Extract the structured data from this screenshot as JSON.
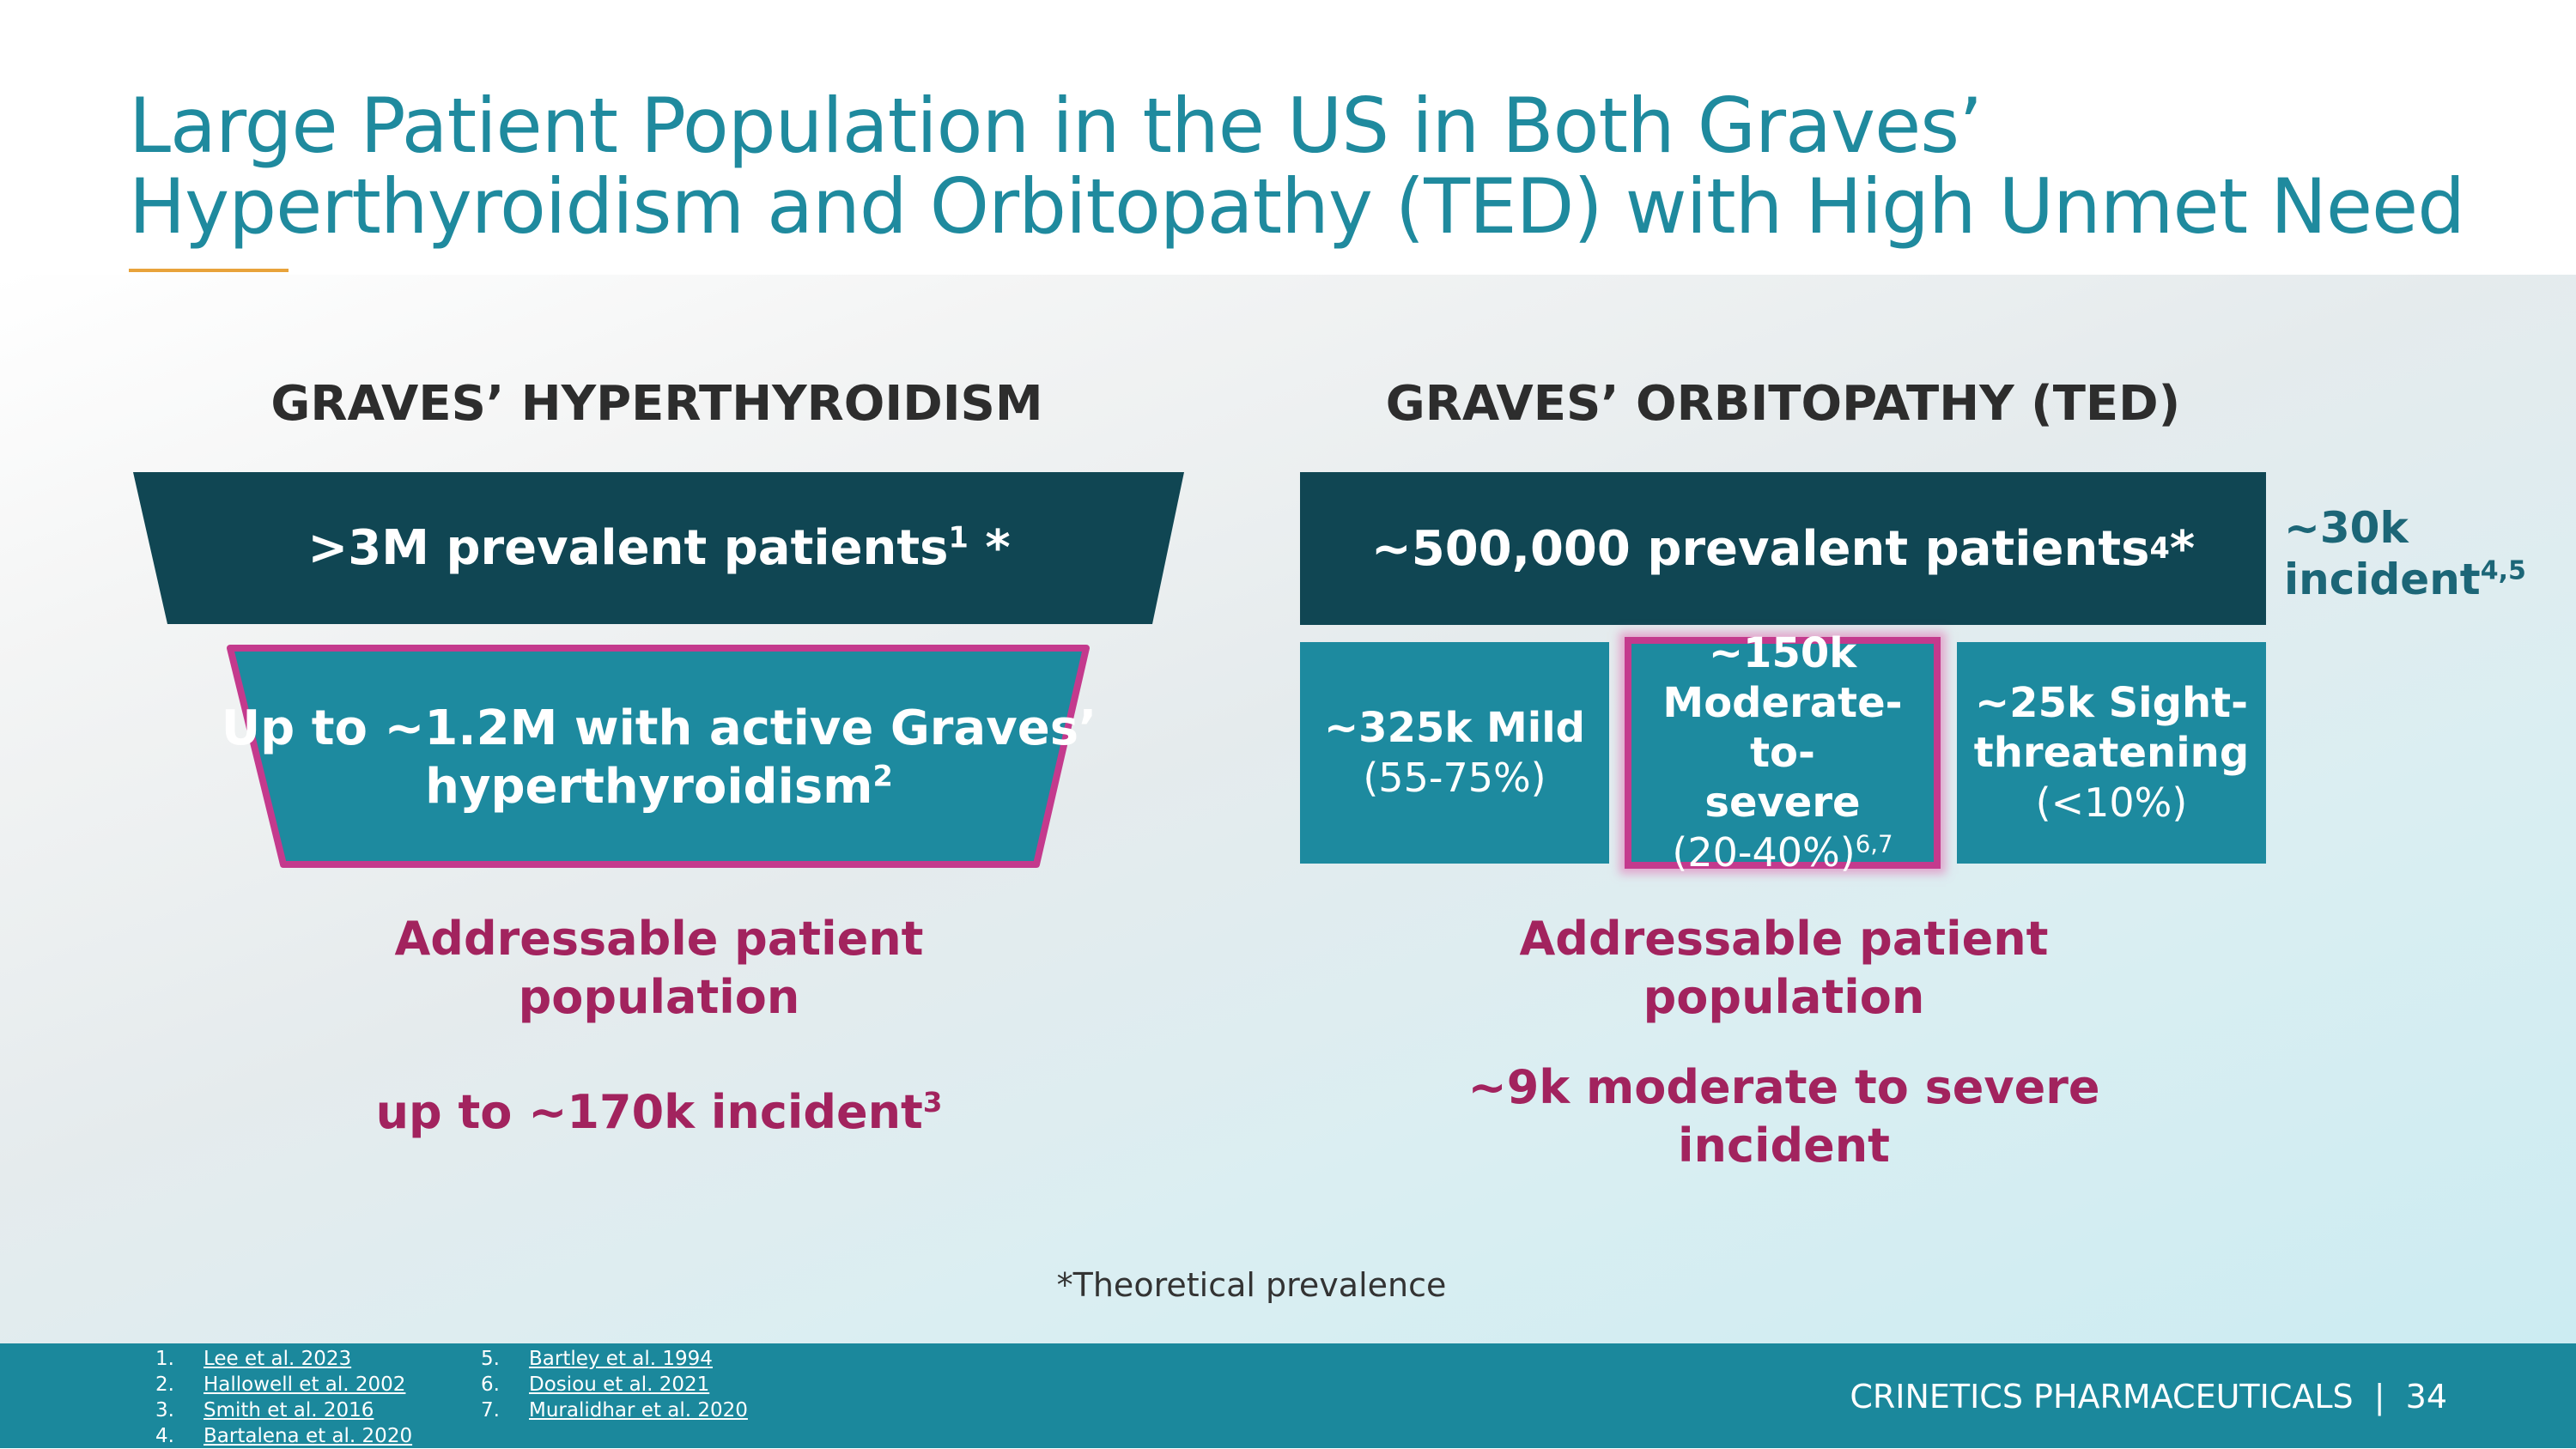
{
  "slide": {
    "title_line1": "Large Patient Population in the US in Both Graves’",
    "title_line2": "Hyperthyroidism and Orbitopathy (TED) with High Unmet Need",
    "footnote": "*Theoretical prevalence",
    "brand": "CRINETICS PHARMACEUTICALS",
    "separator": "|",
    "page_number": "34"
  },
  "left": {
    "heading": "GRAVES’ HYPERTHYROIDISM",
    "funnel_top_text": ">3M prevalent patients",
    "funnel_top_sup": "1",
    "funnel_top_suffix": " *",
    "funnel_mid_line1": "Up to ~1.2M with active Graves’",
    "funnel_mid_line2": "hyperthyroidism",
    "funnel_mid_sup": "2",
    "addressable_line1": "Addressable patient",
    "addressable_line2": "population",
    "incident_text": "up to ~170k incident",
    "incident_sup": "3"
  },
  "right": {
    "heading": "GRAVES’ ORBITOPATHY (TED)",
    "top_box_text": "~500,000 prevalent patients",
    "top_box_sup": "4",
    "top_box_suffix": " *",
    "side_line1": "~30k",
    "side_line2": "incident",
    "side_sup": "4,5",
    "boxes": [
      {
        "bold_lines": [
          "~325k Mild"
        ],
        "normal": "(55-75%)",
        "sup": ""
      },
      {
        "bold_lines": [
          "~150k",
          "Moderate-to-",
          "severe"
        ],
        "normal": "(20-40%)",
        "sup": "6,7"
      },
      {
        "bold_lines": [
          "~25k Sight-",
          "threatening"
        ],
        "normal": "(<10%)",
        "sup": ""
      }
    ],
    "addressable_line1": "Addressable patient",
    "addressable_line2": "population",
    "incident_line1": "~9k moderate to severe",
    "incident_line2": "incident"
  },
  "references": {
    "col1": [
      {
        "num": "1.",
        "text": "Lee et al.  2023"
      },
      {
        "num": "2.",
        "text": "Hallowell et al. 2002"
      },
      {
        "num": "3.",
        "text": "Smith et al. 2016"
      },
      {
        "num": "4.",
        "text": "Bartalena et al. 2020"
      }
    ],
    "col2": [
      {
        "num": "5.",
        "text": "Bartley et al. 1994"
      },
      {
        "num": "6.",
        "text": "Dosiou et al. 2021"
      },
      {
        "num": "7.",
        "text": "Muralidhar et al. 2020"
      }
    ]
  },
  "colors": {
    "title": "#1f8a9e",
    "dark_teal": "#104653",
    "teal": "#1d8a9f",
    "highlight_pink": "#c43a8d",
    "purple": "#a2235e",
    "accent_orange": "#e8a33b"
  }
}
